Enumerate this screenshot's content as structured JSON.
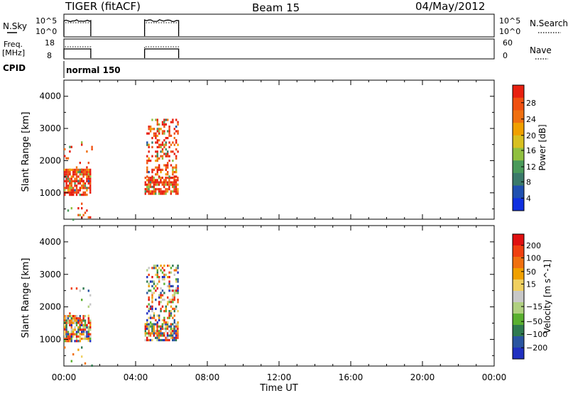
{
  "header": {
    "station": "TIGER (fitACF)",
    "beam": "Beam 15",
    "date": "04/May/2012"
  },
  "strip_labels": {
    "nsky": "N.Sky",
    "nsky_ticks": [
      "10^5",
      "10^0"
    ],
    "nsearch": "N.Search",
    "nsearch_ticks": [
      "10^5",
      "10^0"
    ],
    "freq_line1": "Freq.",
    "freq_line2": "[MHz]",
    "freq_ticks": [
      "18",
      "8"
    ],
    "nave": "Nave",
    "nave_ticks": [
      "60",
      "0"
    ],
    "cpid": "CPID",
    "cpid_value": "normal 150"
  },
  "colors": {
    "power_scale": [
      "#1030e0",
      "#2050b0",
      "#3a7a6a",
      "#4a9a5a",
      "#90c040",
      "#d8c020",
      "#f0a000",
      "#f07010",
      "#f05010",
      "#e82010"
    ],
    "velocity_scale": [
      "#2030c0",
      "#2a55a0",
      "#2f7a50",
      "#5ab030",
      "#b0d080",
      "#c8c8c8",
      "#f0d060",
      "#f0a000",
      "#f07010",
      "#f04010",
      "#e01010"
    ]
  },
  "chart_data": [
    {
      "type": "heatmap",
      "name_colorbar": "Power [dB]",
      "ylabel": "Slant Range [km]",
      "xlabel": "Time UT",
      "xlim_hours": [
        0,
        24
      ],
      "ylim_km": [
        180,
        4500
      ],
      "y_ticks": [
        "4000",
        "3000",
        "2000",
        "1000"
      ],
      "x_ticks": [
        "00:00",
        "04:00",
        "08:00",
        "12:00",
        "16:00",
        "20:00",
        "00:00"
      ],
      "colorbar_ticks": [
        "28",
        "24",
        "20",
        "16",
        "12",
        "8",
        "4"
      ],
      "echo_regions": [
        {
          "t_start": 0.0,
          "t_end": 1.45,
          "range_km": [
            950,
            1750
          ],
          "density": "dense"
        },
        {
          "t_start": 0.0,
          "t_end": 1.6,
          "range_km": [
            200,
            2600
          ],
          "density": "sparse"
        },
        {
          "t_start": 4.5,
          "t_end": 6.4,
          "range_km": [
            950,
            1500
          ],
          "density": "dense"
        },
        {
          "t_start": 4.6,
          "t_end": 6.4,
          "range_km": [
            1500,
            3300
          ],
          "density": "medium"
        }
      ]
    },
    {
      "type": "heatmap",
      "name_colorbar": "Velocity [m s^-1]",
      "ylabel": "Slant Range [km]",
      "xlabel": "Time UT",
      "xlim_hours": [
        0,
        24
      ],
      "ylim_km": [
        180,
        4500
      ],
      "y_ticks": [
        "4000",
        "3000",
        "2000",
        "1000"
      ],
      "x_ticks": [
        "00:00",
        "04:00",
        "08:00",
        "12:00",
        "16:00",
        "20:00",
        "00:00"
      ],
      "colorbar_ticks": [
        "200",
        "100",
        "50",
        "15",
        "−15",
        "−50",
        "−100",
        "−200"
      ],
      "echo_regions": [
        {
          "t_start": 0.0,
          "t_end": 1.45,
          "range_km": [
            950,
            1750
          ],
          "density": "dense"
        },
        {
          "t_start": 0.0,
          "t_end": 1.6,
          "range_km": [
            200,
            2600
          ],
          "density": "sparse"
        },
        {
          "t_start": 4.5,
          "t_end": 6.4,
          "range_km": [
            950,
            1500
          ],
          "density": "dense"
        },
        {
          "t_start": 4.6,
          "t_end": 6.4,
          "range_km": [
            1500,
            3300
          ],
          "density": "medium"
        }
      ]
    },
    {
      "type": "line",
      "panel": "N.Sky / N.Search",
      "segments": [
        [
          0.0,
          1.5
        ],
        [
          4.5,
          6.4
        ]
      ]
    },
    {
      "type": "line",
      "panel": "Freq / Nave",
      "segments": [
        [
          0.0,
          1.5
        ],
        [
          4.5,
          6.4
        ]
      ]
    }
  ]
}
